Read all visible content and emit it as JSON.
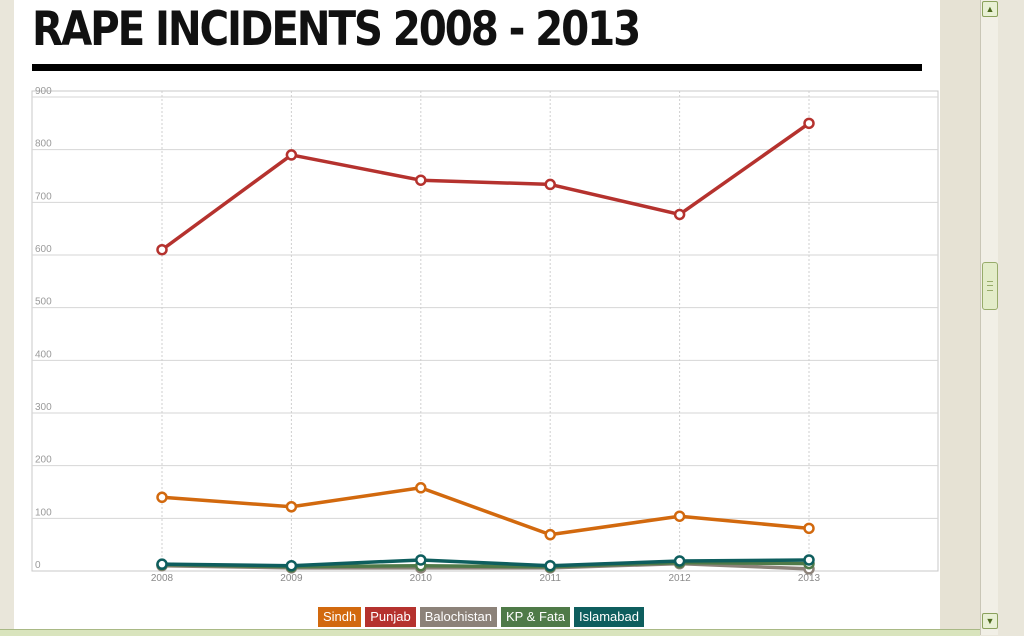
{
  "page": {
    "title": "RAPE INCIDENTS 2008 - 2013"
  },
  "chart_data": {
    "type": "line",
    "title": "RAPE INCIDENTS 2008 - 2013",
    "xlabel": "",
    "ylabel": "",
    "x": [
      "2008",
      "2009",
      "2010",
      "2011",
      "2012",
      "2013"
    ],
    "ylim": [
      0,
      900
    ],
    "yticks": [
      "0",
      "100",
      "200",
      "300",
      "400",
      "500",
      "600",
      "700",
      "800",
      "900"
    ],
    "grid": true,
    "legend_position": "bottom",
    "series": [
      {
        "name": "Sindh",
        "color": "#d2690e",
        "values": [
          140,
          122,
          158,
          69,
          104,
          81
        ]
      },
      {
        "name": "Punjab",
        "color": "#b5322e",
        "values": [
          610,
          790,
          742,
          734,
          677,
          850
        ]
      },
      {
        "name": "Balochistan",
        "color": "#8c8279",
        "values": [
          10,
          6,
          6,
          6,
          14,
          4
        ]
      },
      {
        "name": "KP & Fata",
        "color": "#4f7a48",
        "values": [
          12,
          8,
          10,
          8,
          16,
          14
        ]
      },
      {
        "name": "Islamabad",
        "color": "#0e5e5e",
        "values": [
          13,
          10,
          21,
          10,
          19,
          21
        ]
      }
    ]
  },
  "icons": {
    "scroll_up": "arrow-up-icon",
    "scroll_down": "arrow-down-icon"
  }
}
